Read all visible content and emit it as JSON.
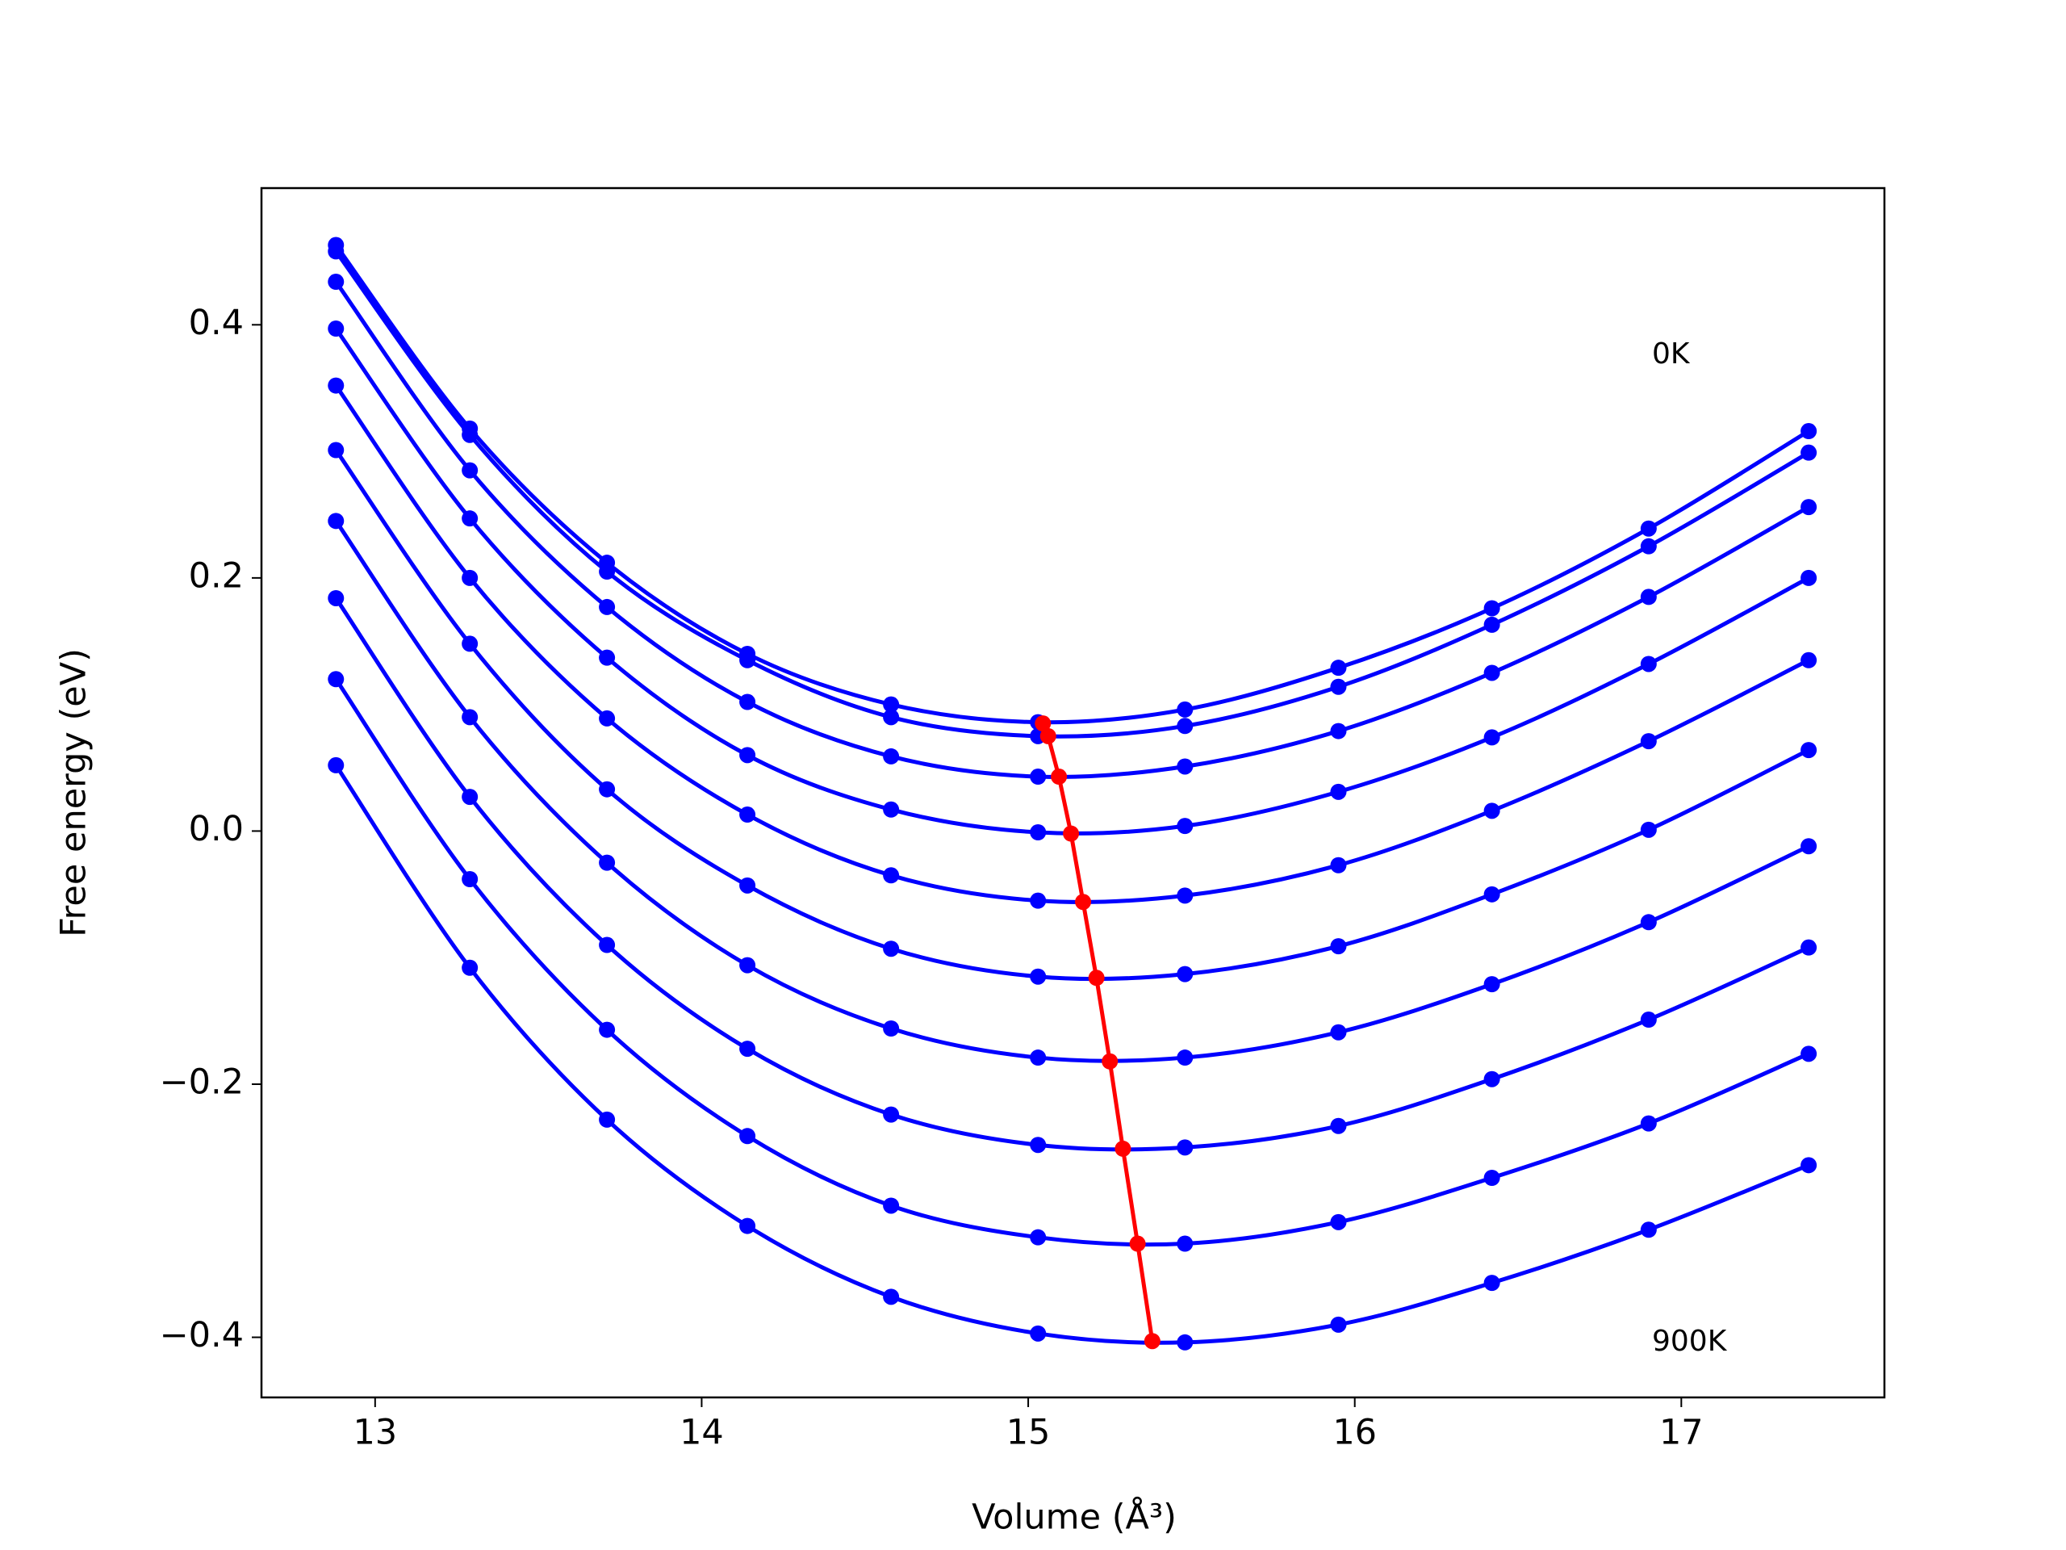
{
  "chart_data": {
    "type": "line",
    "xlabel": "Volume (Å³)",
    "ylabel": "Free energy (eV)",
    "annotations": [
      "0K",
      "900K"
    ],
    "x": [
      12.88,
      13.29,
      13.71,
      14.14,
      14.58,
      15.03,
      15.48,
      15.95,
      16.42,
      16.9,
      17.39
    ],
    "series": [
      {
        "color": "#0000ff",
        "smooth": true,
        "values": [
          0.463,
          0.318,
          0.212,
          0.14,
          0.1,
          0.086,
          0.096,
          0.129,
          0.176,
          0.239,
          0.316
        ]
      },
      {
        "color": "#0000ff",
        "smooth": true,
        "values": [
          0.458,
          0.313,
          0.205,
          0.135,
          0.09,
          0.075,
          0.083,
          0.114,
          0.163,
          0.225,
          0.299
        ]
      },
      {
        "color": "#0000ff",
        "smooth": true,
        "values": [
          0.434,
          0.285,
          0.177,
          0.102,
          0.059,
          0.043,
          0.051,
          0.079,
          0.125,
          0.185,
          0.256
        ]
      },
      {
        "color": "#0000ff",
        "smooth": true,
        "values": [
          0.397,
          0.247,
          0.137,
          0.06,
          0.017,
          -0.001,
          0.004,
          0.031,
          0.074,
          0.132,
          0.2
        ]
      },
      {
        "color": "#0000ff",
        "smooth": true,
        "values": [
          0.352,
          0.2,
          0.089,
          0.013,
          -0.035,
          -0.055,
          -0.051,
          -0.027,
          0.016,
          0.071,
          0.135
        ]
      },
      {
        "color": "#0000ff",
        "smooth": true,
        "values": [
          0.301,
          0.148,
          0.033,
          -0.043,
          -0.093,
          -0.115,
          -0.113,
          -0.091,
          -0.05,
          0.001,
          0.064
        ]
      },
      {
        "color": "#0000ff",
        "smooth": true,
        "values": [
          0.245,
          0.09,
          -0.025,
          -0.106,
          -0.156,
          -0.179,
          -0.179,
          -0.159,
          -0.121,
          -0.072,
          -0.012
        ]
      },
      {
        "color": "#0000ff",
        "smooth": true,
        "values": [
          0.184,
          0.027,
          -0.09,
          -0.172,
          -0.224,
          -0.248,
          -0.25,
          -0.233,
          -0.196,
          -0.149,
          -0.092
        ]
      },
      {
        "color": "#0000ff",
        "smooth": true,
        "values": [
          0.12,
          -0.038,
          -0.157,
          -0.241,
          -0.296,
          -0.321,
          -0.326,
          -0.309,
          -0.274,
          -0.231,
          -0.176
        ]
      },
      {
        "color": "#0000ff",
        "smooth": true,
        "values": [
          0.052,
          -0.108,
          -0.228,
          -0.312,
          -0.368,
          -0.397,
          -0.404,
          -0.39,
          -0.357,
          -0.315,
          -0.264
        ]
      },
      {
        "color": "#ff0000",
        "smooth": false,
        "x": [
          15.045,
          15.061,
          15.094,
          15.131,
          15.168,
          15.209,
          15.25,
          15.29,
          15.335,
          15.38
        ],
        "values": [
          0.085,
          0.075,
          0.043,
          -0.002,
          -0.056,
          -0.116,
          -0.182,
          -0.251,
          -0.326,
          -0.403
        ]
      }
    ],
    "xlim": [
      12.652,
      17.622
    ],
    "ylim": [
      -0.4475,
      0.508
    ],
    "xticks": [
      13,
      14,
      15,
      16,
      17
    ],
    "yticks": [
      {
        "value": -0.4,
        "label": "−0.4"
      },
      {
        "value": -0.2,
        "label": "−0.2"
      },
      {
        "value": 0,
        "label": "0.0"
      },
      0.2,
      0.4
    ],
    "grid": false
  }
}
